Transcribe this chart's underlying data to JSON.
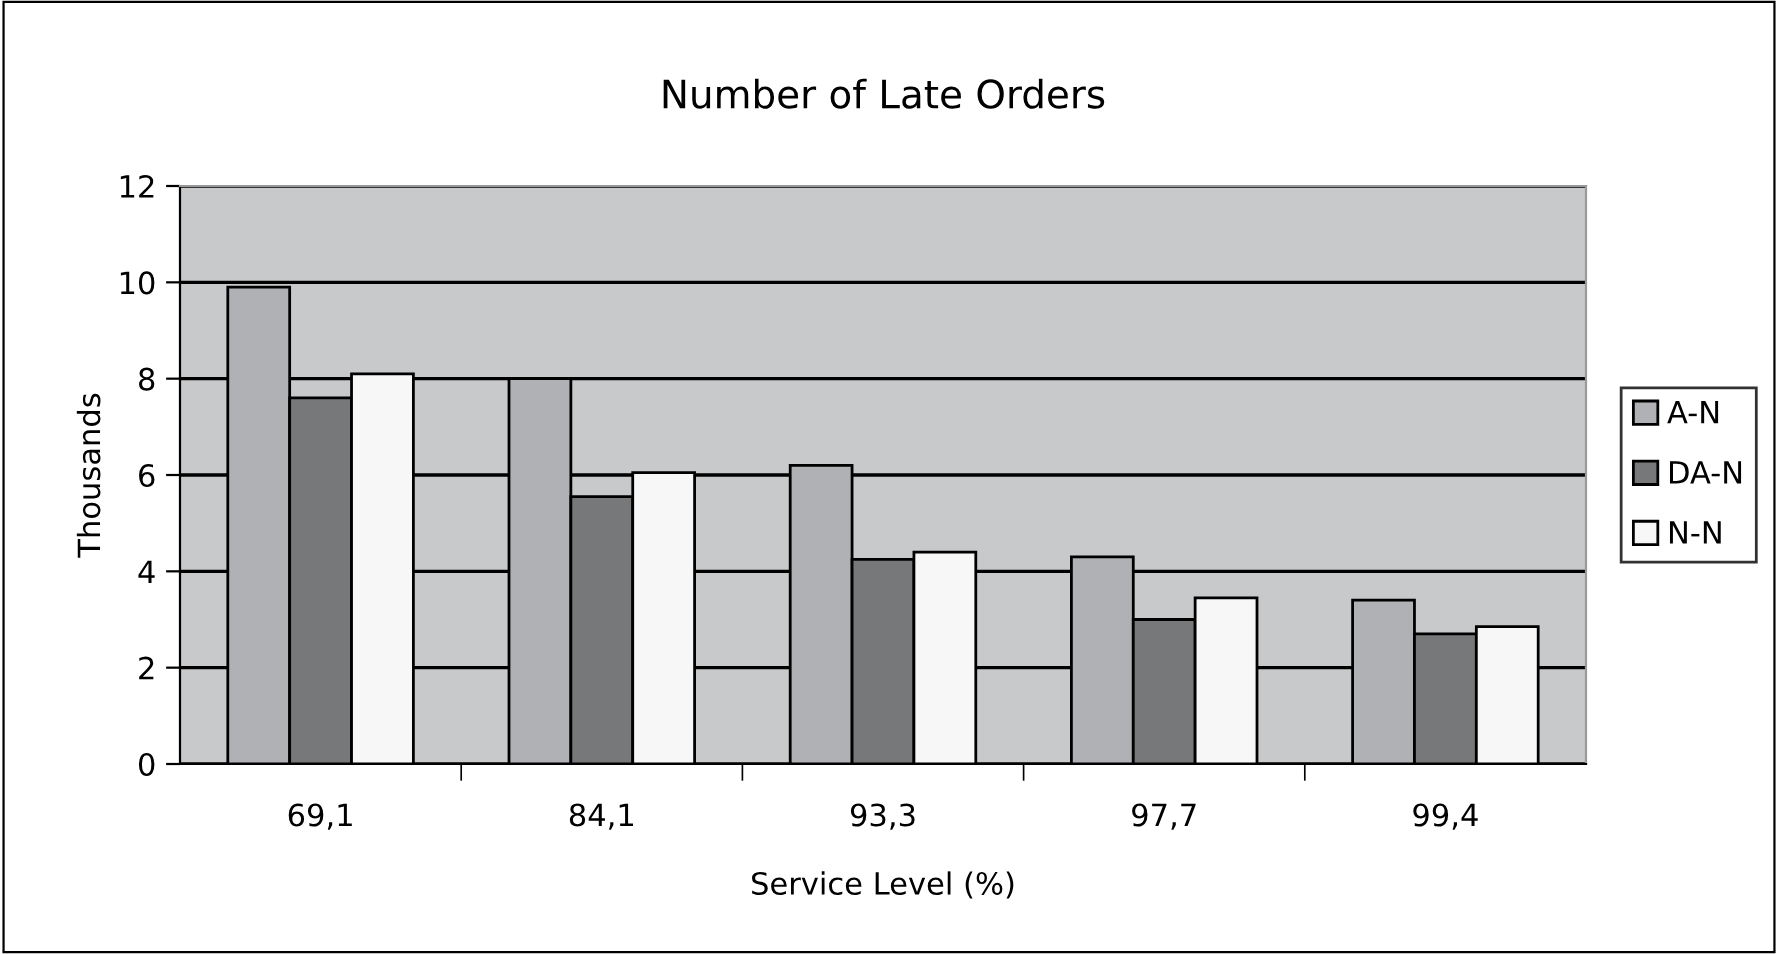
{
  "chart_data": {
    "type": "bar",
    "title": "Number of Late Orders",
    "xlabel": "Service Level (%)",
    "ylabel": "Thousands",
    "categories": [
      "69,1",
      "84,1",
      "93,3",
      "97,7",
      "99,4"
    ],
    "series": [
      {
        "name": "A-N",
        "color": "#b0b1b5",
        "values": [
          9.9,
          8.0,
          6.2,
          4.3,
          3.4
        ]
      },
      {
        "name": "DA-N",
        "color": "#77787a",
        "values": [
          7.6,
          5.55,
          4.25,
          3.0,
          2.7
        ]
      },
      {
        "name": "N-N",
        "color": "#f7f7f7",
        "values": [
          8.1,
          6.05,
          4.4,
          3.45,
          2.85
        ]
      }
    ],
    "ylim": [
      0,
      12
    ],
    "yticks": [
      0,
      2,
      4,
      6,
      8,
      10,
      12
    ],
    "grid": "y",
    "legend": "right"
  }
}
